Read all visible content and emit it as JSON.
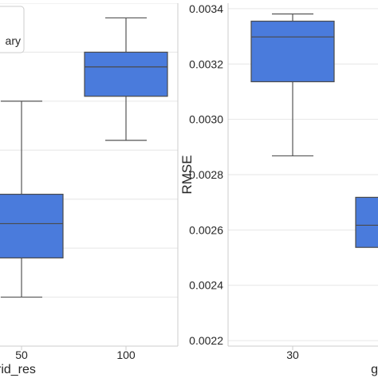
{
  "chart_data": [
    {
      "type": "box",
      "xlabel": "grid_res",
      "ylabel": "",
      "categories": [
        "50",
        "100"
      ],
      "ylim": [
        0.3,
        1.0
      ],
      "legend_text": "ary",
      "color": "#4a7bdc",
      "grid": true,
      "boxes": [
        {
          "category": "50",
          "whisker_low": 0.4,
          "q1": 0.48,
          "median": 0.55,
          "q3": 0.61,
          "whisker_high": 0.8
        },
        {
          "category": "100",
          "whisker_low": 0.72,
          "q1": 0.81,
          "median": 0.87,
          "q3": 0.9,
          "whisker_high": 0.97
        }
      ]
    },
    {
      "type": "box",
      "xlabel": "gri",
      "ylabel": "RMSE",
      "categories": [
        "30",
        ""
      ],
      "ylim": [
        0.00218,
        0.00342
      ],
      "yticks": [
        "0.0022",
        "0.0024",
        "0.0026",
        "0.0028",
        "0.0030",
        "0.0032",
        "0.0034"
      ],
      "color": "#4a7bdc",
      "grid": true,
      "boxes": [
        {
          "category": "30",
          "whisker_low": 0.002868,
          "q1": 0.003136,
          "median": 0.003298,
          "q3": 0.003355,
          "whisker_high": 0.003381
        },
        {
          "category": "",
          "whisker_low": null,
          "q1": 0.002537,
          "median": 0.002617,
          "q3": 0.002718,
          "whisker_high": null
        }
      ]
    }
  ]
}
